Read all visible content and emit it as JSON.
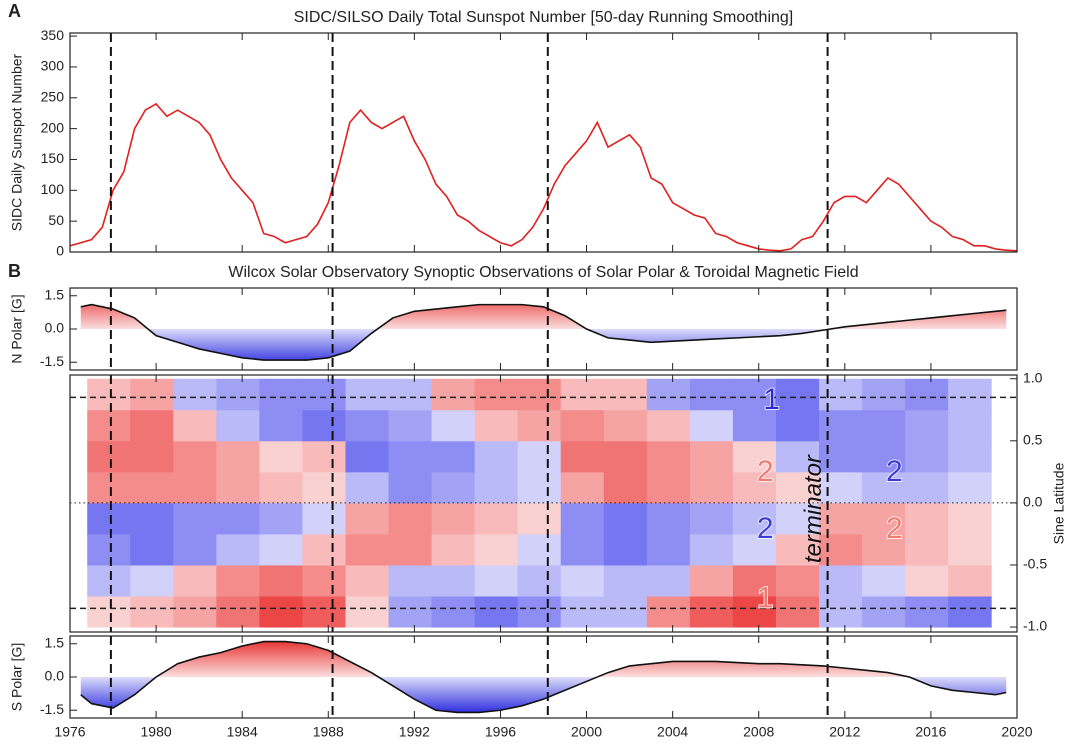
{
  "x_axis": {
    "xlim": [
      1976,
      2020
    ],
    "xticks": [
      1976,
      1980,
      1984,
      1988,
      1992,
      1996,
      2000,
      2004,
      2008,
      2012,
      2016,
      2020
    ]
  },
  "terminators": [
    1977.9,
    1988.2,
    1998.2,
    2011.2
  ],
  "chart_data": [
    {
      "type": "line",
      "panel": "A",
      "title": "SIDC/SILSO Daily Total Sunspot Number [50-day Running Smoothing]",
      "ylabel": "SIDC Daily Sunspot Number",
      "color": "#e02020",
      "x": [
        1976,
        1976.5,
        1977,
        1977.5,
        1978,
        1978.5,
        1979,
        1979.5,
        1980,
        1980.5,
        1981,
        1981.5,
        1982,
        1982.5,
        1983,
        1983.5,
        1984,
        1984.5,
        1985,
        1985.5,
        1986,
        1986.5,
        1987,
        1987.5,
        1988,
        1988.5,
        1989,
        1989.5,
        1990,
        1990.5,
        1991,
        1991.5,
        1992,
        1992.5,
        1993,
        1993.5,
        1994,
        1994.5,
        1995,
        1995.5,
        1996,
        1996.5,
        1997,
        1997.5,
        1998,
        1998.5,
        1999,
        1999.5,
        2000,
        2000.5,
        2001,
        2001.5,
        2002,
        2002.5,
        2003,
        2003.5,
        2004,
        2004.5,
        2005,
        2005.5,
        2006,
        2006.5,
        2007,
        2007.5,
        2008,
        2008.5,
        2009,
        2009.5,
        2010,
        2010.5,
        2011,
        2011.5,
        2012,
        2012.5,
        2013,
        2013.5,
        2014,
        2014.5,
        2015,
        2015.5,
        2016,
        2016.5,
        2017,
        2017.5,
        2018,
        2018.5,
        2019,
        2019.5,
        2020
      ],
      "values": [
        10,
        15,
        20,
        40,
        100,
        130,
        200,
        230,
        240,
        220,
        230,
        220,
        210,
        190,
        150,
        120,
        100,
        80,
        30,
        25,
        15,
        20,
        25,
        45,
        80,
        140,
        210,
        230,
        210,
        200,
        210,
        220,
        180,
        150,
        110,
        90,
        60,
        50,
        35,
        25,
        15,
        10,
        20,
        40,
        70,
        110,
        140,
        160,
        180,
        210,
        170,
        180,
        190,
        170,
        120,
        110,
        80,
        70,
        60,
        55,
        30,
        25,
        15,
        10,
        5,
        3,
        2,
        5,
        20,
        25,
        50,
        80,
        90,
        90,
        80,
        100,
        120,
        110,
        90,
        70,
        50,
        40,
        25,
        20,
        10,
        10,
        5,
        3,
        2
      ],
      "ylim": [
        0,
        355
      ],
      "yticks": [
        0,
        50,
        100,
        150,
        200,
        250,
        300,
        350
      ]
    },
    {
      "type": "area",
      "panel": "B",
      "title": "Wilcox Solar Observatory Synoptic Observations of Solar Polar & Toroidal Magnetic Field",
      "ylabel": "N Polar [G]",
      "pos_color": "#e61e1e",
      "neg_color": "#1414dc",
      "line_color": "#111111",
      "x": [
        1976.5,
        1977,
        1978,
        1979,
        1980,
        1981,
        1982,
        1983,
        1984,
        1985,
        1986,
        1987,
        1988,
        1989,
        1990,
        1991,
        1992,
        1993,
        1994,
        1995,
        1996,
        1997,
        1998,
        1999,
        2000,
        2001,
        2002,
        2003,
        2004,
        2005,
        2006,
        2007,
        2008,
        2009,
        2010,
        2011,
        2012,
        2013,
        2014,
        2015,
        2016,
        2017,
        2018,
        2019,
        2019.5
      ],
      "values": [
        1.0,
        1.1,
        0.9,
        0.5,
        -0.3,
        -0.6,
        -0.9,
        -1.1,
        -1.3,
        -1.4,
        -1.4,
        -1.4,
        -1.3,
        -1.0,
        -0.2,
        0.5,
        0.8,
        0.9,
        1.0,
        1.1,
        1.1,
        1.1,
        1.0,
        0.6,
        0.0,
        -0.4,
        -0.5,
        -0.6,
        -0.55,
        -0.5,
        -0.45,
        -0.4,
        -0.35,
        -0.3,
        -0.2,
        -0.05,
        0.1,
        0.2,
        0.3,
        0.4,
        0.5,
        0.6,
        0.7,
        0.8,
        0.85
      ],
      "ylim": [
        -1.85,
        1.85
      ],
      "yticks": [
        -1.5,
        {
          "value": 0,
          "label": "0.0"
        },
        1.5
      ]
    },
    {
      "type": "heatmap",
      "y2label": "Sine Latitude",
      "colormap": [
        "#1a1ae6",
        "#ffffff",
        "#e81818"
      ],
      "zlim": [
        -1,
        1
      ],
      "x_edges": [
        1976.8,
        1978.8,
        1980.8,
        1982.8,
        1984.8,
        1986.8,
        1988.8,
        1990.8,
        1992.8,
        1994.8,
        1996.8,
        1998.8,
        2000.8,
        2002.8,
        2004.8,
        2006.8,
        2008.8,
        2010.8,
        2012.8,
        2014.8,
        2016.8,
        2018.8
      ],
      "y_edges": [
        -1,
        -0.75,
        -0.5,
        -0.25,
        0,
        0.25,
        0.5,
        0.75,
        1
      ],
      "z": [
        [
          0.2,
          0.3,
          0.4,
          0.6,
          0.8,
          0.7,
          0.2,
          -0.4,
          -0.5,
          -0.6,
          -0.5,
          -0.3,
          -0.3,
          0.5,
          0.7,
          0.8,
          0.6,
          -0.3,
          -0.4,
          -0.5,
          -0.6
        ],
        [
          -0.3,
          -0.2,
          0.3,
          0.5,
          0.6,
          0.5,
          0.3,
          -0.3,
          -0.3,
          -0.2,
          -0.3,
          -0.2,
          -0.3,
          -0.3,
          0.4,
          0.6,
          0.5,
          -0.3,
          -0.2,
          0.2,
          0.3
        ],
        [
          -0.5,
          -0.6,
          -0.5,
          -0.3,
          -0.2,
          0.3,
          0.5,
          0.5,
          0.3,
          0.2,
          -0.2,
          -0.5,
          -0.6,
          -0.5,
          -0.3,
          -0.2,
          0.3,
          0.5,
          0.4,
          0.3,
          0.2
        ],
        [
          -0.6,
          -0.6,
          -0.5,
          -0.5,
          -0.4,
          -0.2,
          0.4,
          0.5,
          0.4,
          0.3,
          0.2,
          -0.5,
          -0.6,
          -0.5,
          -0.4,
          -0.3,
          -0.2,
          0.4,
          0.4,
          0.3,
          0.2
        ],
        [
          0.5,
          0.5,
          0.5,
          0.4,
          0.3,
          0.2,
          -0.3,
          -0.5,
          -0.4,
          -0.3,
          -0.2,
          0.4,
          0.6,
          0.5,
          0.4,
          0.3,
          0.2,
          -0.2,
          -0.3,
          -0.3,
          -0.2
        ],
        [
          0.6,
          0.6,
          0.5,
          0.4,
          0.2,
          0.3,
          -0.6,
          -0.5,
          -0.5,
          -0.3,
          -0.2,
          0.6,
          0.6,
          0.5,
          0.4,
          0.2,
          -0.3,
          -0.5,
          -0.5,
          -0.4,
          -0.3
        ],
        [
          0.5,
          0.6,
          0.3,
          -0.3,
          -0.5,
          -0.6,
          -0.5,
          -0.4,
          -0.2,
          0.3,
          0.4,
          0.5,
          0.4,
          0.3,
          -0.2,
          -0.5,
          -0.6,
          -0.5,
          -0.5,
          -0.4,
          -0.3
        ],
        [
          0.3,
          0.4,
          -0.3,
          -0.4,
          -0.5,
          -0.5,
          -0.3,
          -0.3,
          0.4,
          0.5,
          0.5,
          0.3,
          0.3,
          -0.4,
          -0.5,
          -0.5,
          -0.6,
          -0.3,
          -0.4,
          -0.5,
          -0.3
        ]
      ],
      "y2lim": [
        -1.04,
        1.03
      ],
      "y2ticks": [
        {
          "value": -1,
          "label": "-1.0"
        },
        -0.5,
        {
          "value": 0,
          "label": "0.0"
        },
        0.5,
        {
          "value": 1,
          "label": "1.0"
        }
      ],
      "reference_lines": [
        {
          "value": 0.85,
          "style": "dashed"
        },
        {
          "value": 0,
          "style": "dotted"
        },
        {
          "value": -0.85,
          "style": "dashed"
        }
      ],
      "annotations": [
        {
          "text": "1",
          "x": 2008.6,
          "y": 0.82,
          "color": "#2a2ad0"
        },
        {
          "text": "2",
          "x": 2008.3,
          "y": 0.24,
          "color": "#f07a70"
        },
        {
          "text": "2",
          "x": 2014.3,
          "y": 0.24,
          "color": "#3a3ad8"
        },
        {
          "text": "2",
          "x": 2008.3,
          "y": -0.22,
          "color": "#3a3ad8"
        },
        {
          "text": "2",
          "x": 2014.3,
          "y": -0.22,
          "color": "#f07a70"
        },
        {
          "text": "1",
          "x": 2008.3,
          "y": -0.78,
          "color": "#f07a70"
        },
        {
          "text": "terminator",
          "x": 2010.6,
          "y": -0.05,
          "color": "#111111",
          "rotate": -90
        }
      ]
    },
    {
      "type": "area",
      "ylabel": "S Polar [G]",
      "pos_color": "#e61e1e",
      "neg_color": "#1414dc",
      "line_color": "#111111",
      "x": [
        1976.5,
        1977,
        1978,
        1979,
        1980,
        1981,
        1982,
        1983,
        1984,
        1985,
        1986,
        1987,
        1988,
        1989,
        1990,
        1991,
        1992,
        1993,
        1994,
        1995,
        1996,
        1997,
        1998,
        1999,
        2000,
        2001,
        2002,
        2003,
        2004,
        2005,
        2006,
        2007,
        2008,
        2009,
        2010,
        2011,
        2012,
        2013,
        2014,
        2015,
        2016,
        2017,
        2018,
        2019,
        2019.5
      ],
      "values": [
        -0.8,
        -1.2,
        -1.4,
        -0.8,
        0.0,
        0.6,
        0.9,
        1.1,
        1.4,
        1.6,
        1.6,
        1.5,
        1.2,
        0.7,
        0.2,
        -0.4,
        -1.0,
        -1.5,
        -1.6,
        -1.6,
        -1.5,
        -1.3,
        -1.0,
        -0.6,
        -0.2,
        0.2,
        0.5,
        0.6,
        0.7,
        0.7,
        0.7,
        0.65,
        0.6,
        0.6,
        0.55,
        0.5,
        0.4,
        0.3,
        0.2,
        0.0,
        -0.4,
        -0.6,
        -0.7,
        -0.8,
        -0.7
      ],
      "ylim": [
        -1.85,
        1.85
      ],
      "yticks": [
        -1.5,
        {
          "value": 0,
          "label": "0.0"
        },
        1.5
      ],
      "show_xtick_labels": true
    }
  ]
}
